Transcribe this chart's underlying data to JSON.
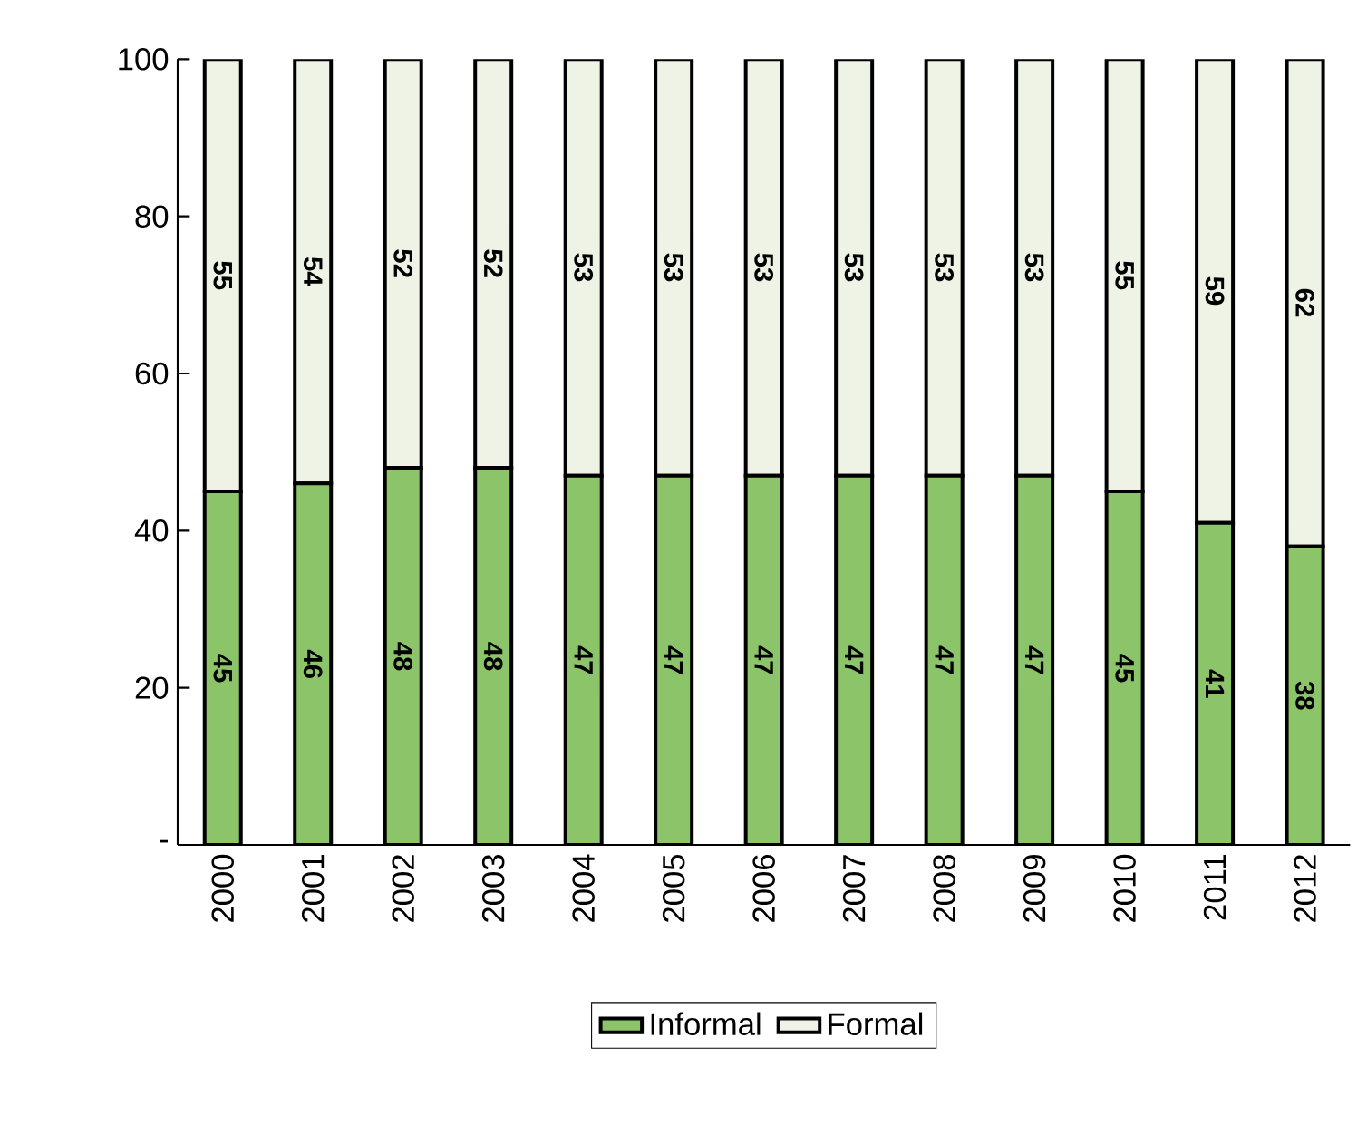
{
  "chart_data": {
    "type": "bar",
    "stacked": true,
    "data_labels": true,
    "legend": "bottom",
    "categories": [
      "2000",
      "2001",
      "2002",
      "2003",
      "2004",
      "2005",
      "2006",
      "2007",
      "2008",
      "2009",
      "2010",
      "2011",
      "2012"
    ],
    "series": [
      {
        "name": "Informal",
        "color": "#8cc46a",
        "values": [
          45,
          46,
          48,
          48,
          47,
          47,
          47,
          47,
          47,
          47,
          45,
          41,
          38
        ]
      },
      {
        "name": "Formal",
        "color": "#eef3e6",
        "values": [
          55,
          54,
          52,
          52,
          53,
          53,
          53,
          53,
          53,
          53,
          55,
          59,
          62
        ]
      }
    ],
    "ylim": [
      0,
      100
    ],
    "yticks": [
      {
        "value": 0,
        "label": "-"
      },
      20,
      40,
      60,
      80,
      100
    ]
  }
}
